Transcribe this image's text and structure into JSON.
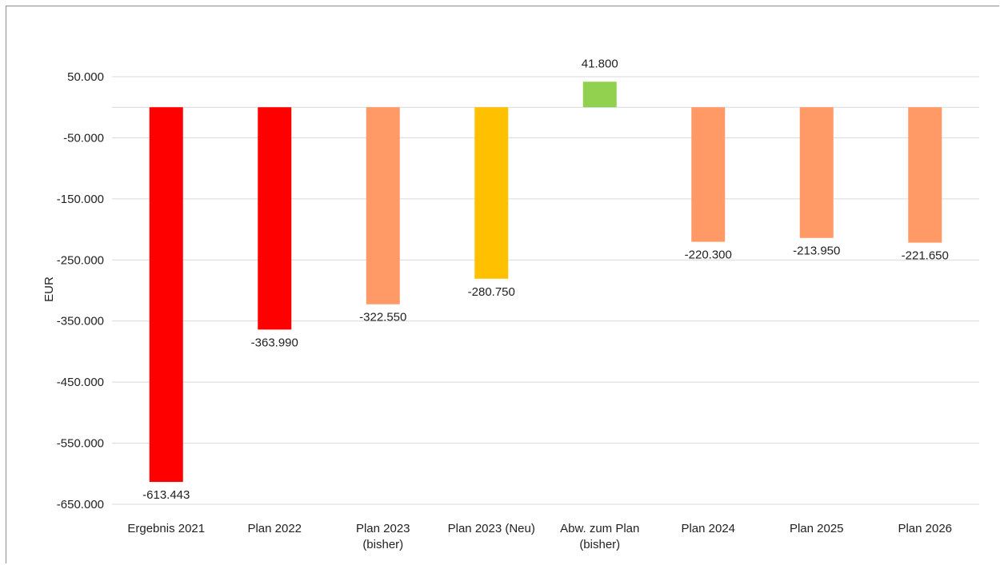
{
  "chart_data": {
    "type": "bar",
    "ylabel": "EUR",
    "ylim": [
      -650000,
      50000
    ],
    "yticks": [
      50000,
      -50000,
      -150000,
      -250000,
      -350000,
      -450000,
      -550000,
      -650000
    ],
    "ytick_labels": [
      "50.000",
      "-50.000",
      "-150.000",
      "-250.000",
      "-350.000",
      "-450.000",
      "-550.000",
      "-650.000"
    ],
    "grid": true,
    "legend": "none",
    "categories": [
      [
        "Ergebnis 2021"
      ],
      [
        "Plan 2022"
      ],
      [
        "Plan 2023",
        "(bisher)"
      ],
      [
        "Plan 2023 (Neu)"
      ],
      [
        "Abw. zum Plan",
        "(bisher)"
      ],
      [
        "Plan 2024"
      ],
      [
        "Plan 2025"
      ],
      [
        "Plan 2026"
      ]
    ],
    "values": [
      -613443,
      -363990,
      -322550,
      -280750,
      41800,
      -220300,
      -213950,
      -221650
    ],
    "value_labels": [
      "-613.443",
      "-363.990",
      "-322.550",
      "-280.750",
      "41.800",
      "-220.300",
      "-213.950",
      "-221.650"
    ],
    "colors": [
      "#ff0000",
      "#ff0000",
      "#ff9966",
      "#ffc000",
      "#92d050",
      "#ff9966",
      "#ff9966",
      "#ff9966"
    ]
  }
}
